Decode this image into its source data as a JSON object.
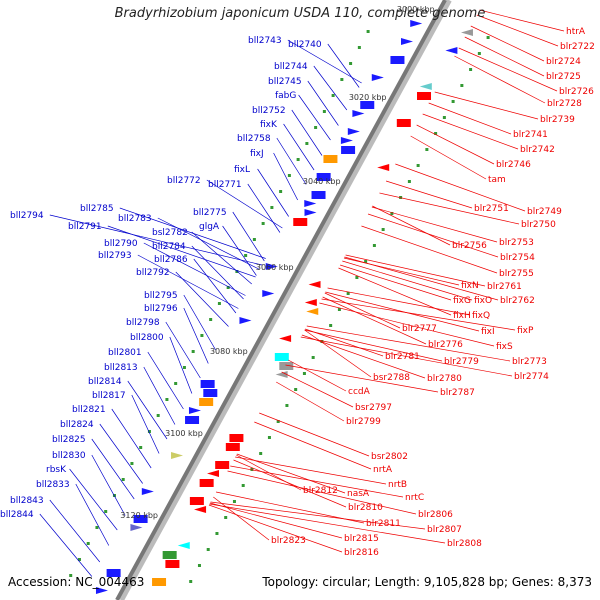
{
  "title": "Bradyrhizobium japonicum USDA 110, complete genome",
  "accession": "Accession: NC_004463",
  "summary": "Topology: circular; Length: 9,105,828 bp; Genes: 8,373",
  "scale_labels": [
    "3000 kbp",
    "3020 kbp",
    "3040 kbp",
    "3060 kbp",
    "3080 kbp",
    "3100 kbp",
    "3120 kbp"
  ],
  "colors": {
    "left_labels": "#0000cc",
    "right_labels": "#ee0000",
    "backbone": "#777777"
  },
  "left_genes": [
    "bll2743",
    "bll2740",
    "bll2744",
    "bll2745",
    "fabG",
    "bll2752",
    "fixK",
    "bll2758",
    "fixJ",
    "fixL",
    "bll2772",
    "bll2771",
    "bll2775",
    "glgA",
    "bll2794",
    "bll2785",
    "bll2791",
    "bll2783",
    "bsl2782",
    "bll2790",
    "bll2784",
    "bll2793",
    "bll2786",
    "bll2792",
    "bll2795",
    "bll2796",
    "bll2798",
    "bll2800",
    "bll2801",
    "bll2813",
    "bll2814",
    "bll2817",
    "bll2821",
    "bll2824",
    "bll2825",
    "bll2830",
    "rbsK",
    "bll2833",
    "bll2843",
    "bll2844"
  ],
  "right_genes": [
    "htrA",
    "blr2722",
    "blr2724",
    "blr2725",
    "blr2726",
    "blr2728",
    "blr2739",
    "blr2741",
    "blr2742",
    "blr2746",
    "tam",
    "blr2749",
    "blr2751",
    "blr2750",
    "blr2753",
    "blr2756",
    "blr2754",
    "blr2755",
    "fixN",
    "blr2761",
    "fixG",
    "fixO",
    "blr2762",
    "fixH",
    "fixQ",
    "fixP",
    "blr2777",
    "fixI",
    "fixS",
    "blr2776",
    "blr2781",
    "blr2779",
    "blr2773",
    "blr2774",
    "blr2780",
    "bsr2788",
    "blr2787",
    "ccdA",
    "bsr2797",
    "blr2799",
    "bsr2802",
    "nrtA",
    "nrtB",
    "nrtC",
    "blr2812",
    "nasA",
    "blr2806",
    "blr2810",
    "blr2807",
    "blr2811",
    "blr2815",
    "blr2808",
    "blr2823",
    "blr2816"
  ]
}
